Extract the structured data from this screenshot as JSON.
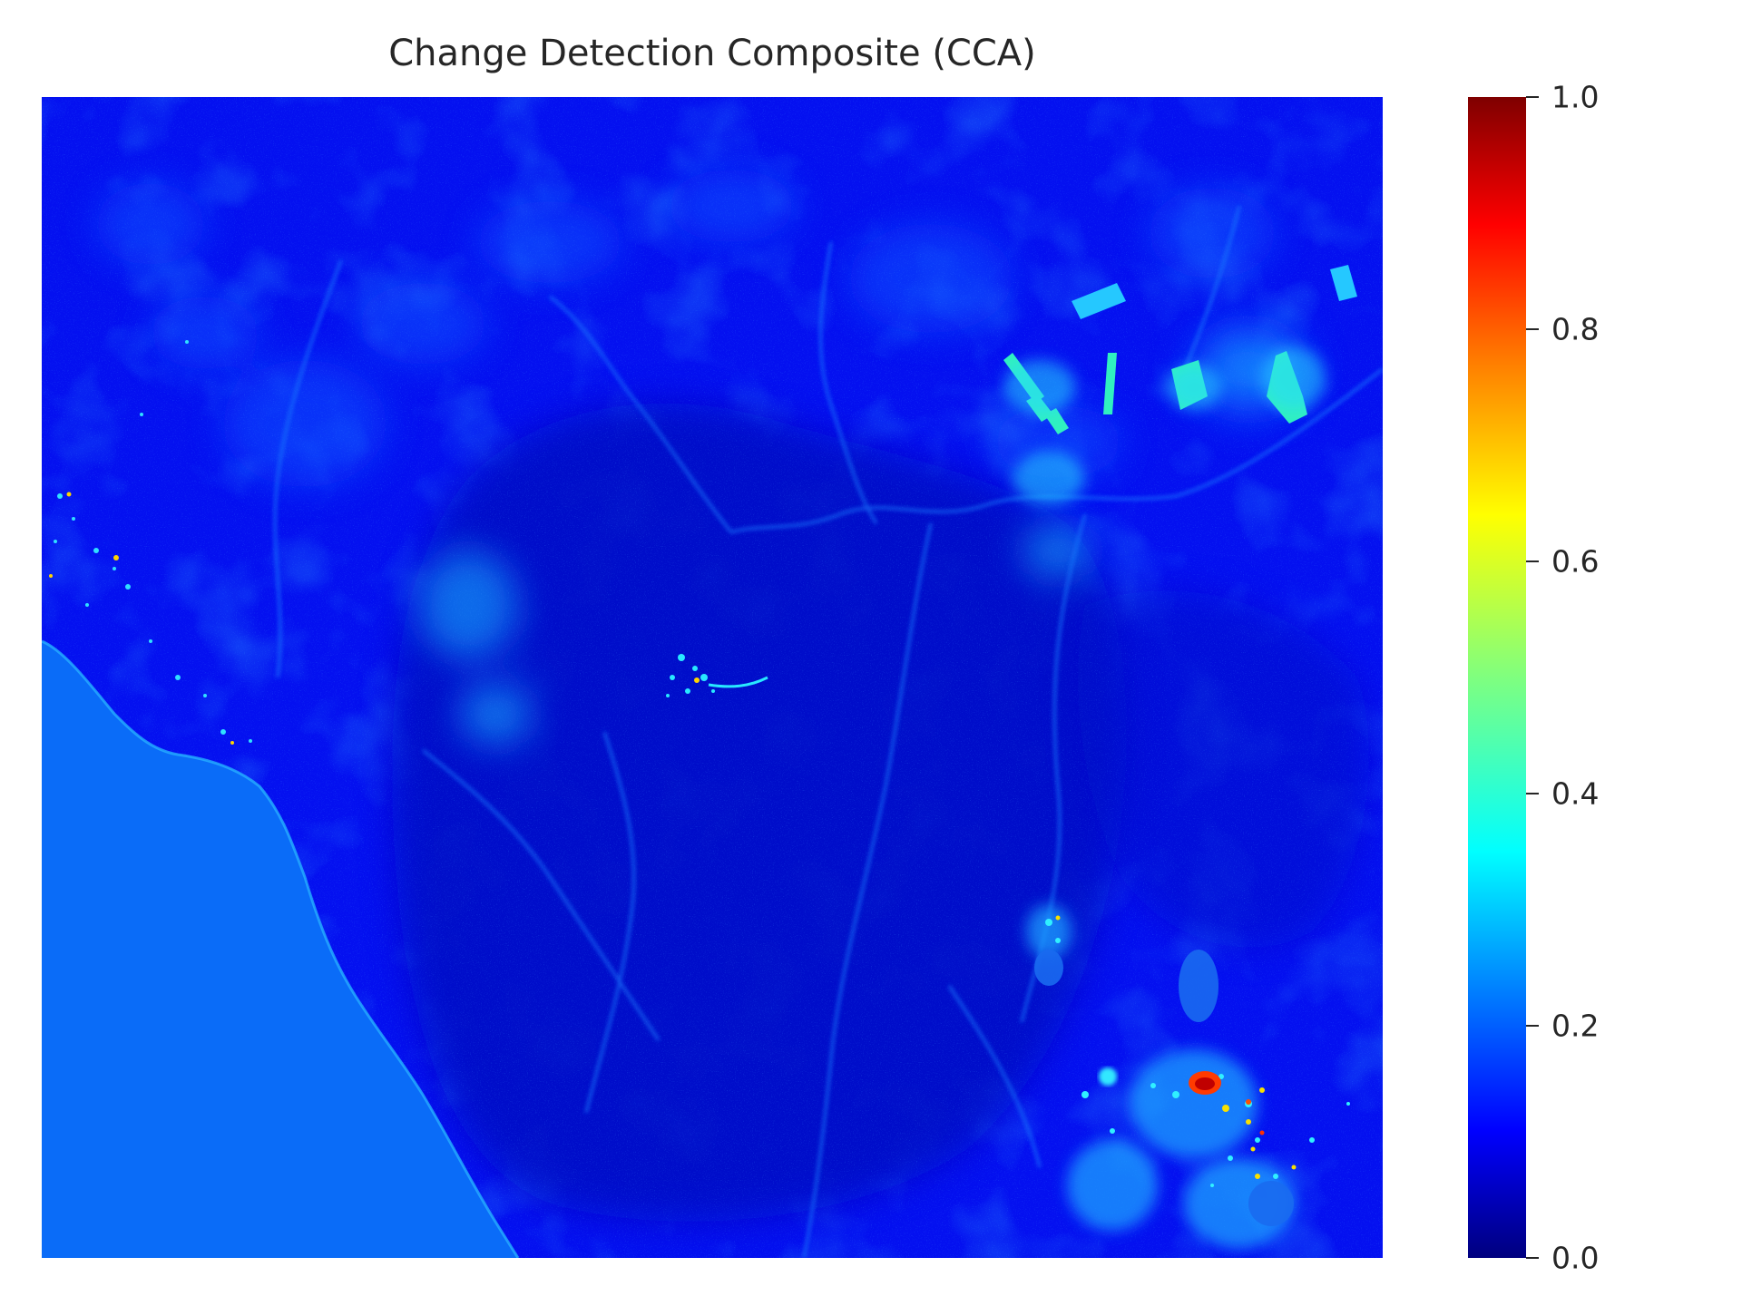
{
  "title": "Change Detection Composite (CCA)",
  "colormap": "jet",
  "colorbar": {
    "min": 0.0,
    "max": 1.0,
    "ticks": [
      "0.0",
      "0.2",
      "0.4",
      "0.6",
      "0.8",
      "1.0"
    ],
    "stops": [
      "#00007f",
      "#0000ff",
      "#007fff",
      "#00ffff",
      "#7fff7f",
      "#ffff00",
      "#ff7f00",
      "#ff0000",
      "#7f0000"
    ]
  },
  "colors": {
    "background_land": "#0410f0",
    "sea": "#0a6cf8",
    "dark_forest": "#0206c8",
    "highlight_hot": "#d80000"
  }
}
